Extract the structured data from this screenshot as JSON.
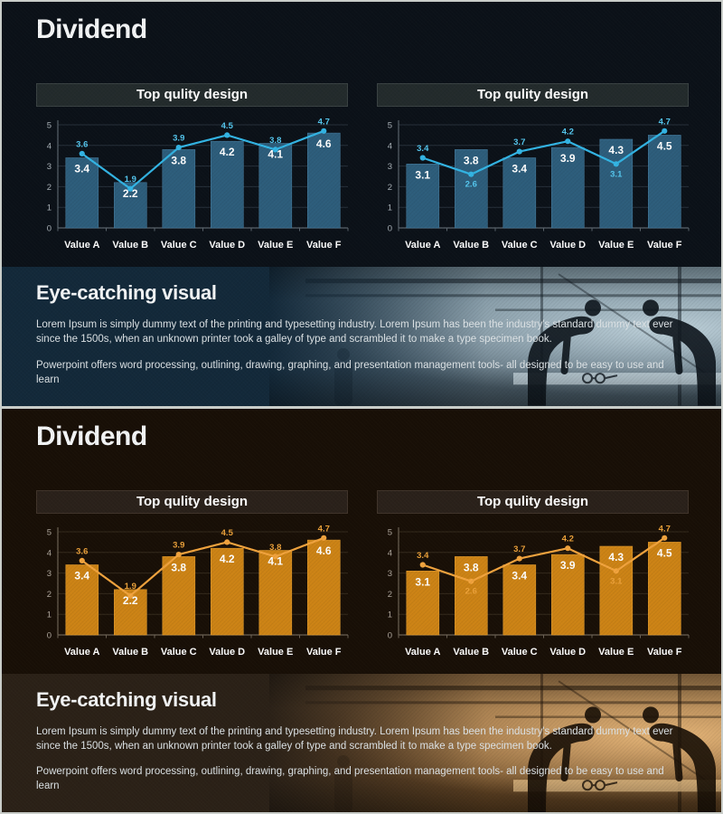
{
  "page": {
    "kind": "presentation-template-preview",
    "separator_color": "#c9cdc9"
  },
  "chart_data": [
    {
      "type": "bar",
      "title": "Top qulity design",
      "categories": [
        "Value A",
        "Value B",
        "Value C",
        "Value D",
        "Value E",
        "Value F"
      ],
      "series": [
        {
          "name": "bars",
          "type": "bar",
          "values": [
            3.4,
            2.2,
            3.8,
            4.2,
            4.1,
            4.6
          ]
        },
        {
          "name": "line",
          "type": "line",
          "values": [
            3.6,
            1.9,
            3.9,
            4.5,
            3.8,
            4.7
          ],
          "label_side": [
            "above",
            "above",
            "above",
            "above",
            "above",
            "above"
          ]
        }
      ],
      "ylim": [
        0,
        5
      ],
      "yticks": [
        0,
        1,
        2,
        3,
        4,
        5
      ],
      "grid": true,
      "legend": false,
      "data_labels": true
    },
    {
      "type": "bar",
      "title": "Top qulity design",
      "categories": [
        "Value A",
        "Value B",
        "Value C",
        "Value D",
        "Value E",
        "Value F"
      ],
      "series": [
        {
          "name": "bars",
          "type": "bar",
          "values": [
            3.1,
            3.8,
            3.4,
            3.9,
            4.3,
            4.5
          ]
        },
        {
          "name": "line",
          "type": "line",
          "values": [
            3.4,
            2.6,
            3.7,
            4.2,
            3.1,
            4.7
          ],
          "label_side": [
            "above",
            "below",
            "above",
            "above",
            "below",
            "above"
          ]
        }
      ],
      "ylim": [
        0,
        5
      ],
      "yticks": [
        0,
        1,
        2,
        3,
        4,
        5
      ],
      "grid": true,
      "legend": false,
      "data_labels": true
    }
  ],
  "slides": [
    {
      "title": "Dividend",
      "footer": {
        "heading": "Eye-catching visual",
        "para1": "Lorem Ipsum is simply dummy text of the printing and typesetting industry. Lorem Ipsum has been the industry's standard dummy text ever since the 1500s, when an unknown printer took a galley of type and scrambled it to make a type specimen book.",
        "para2": "Powerpoint offers word processing, outlining, drawing, graphing, and presentation management tools- all designed to be easy to use and learn"
      },
      "theme": {
        "bg": "#0b1118",
        "hdr_bg": "#232b2c",
        "hdr_border": "#3a4243",
        "footer_bg": "#13293a",
        "ph_top": "#7f96a2",
        "ph_mid": "#5d7280",
        "ph_low": "#43545f",
        "ph_light": "#bdd0d9",
        "ph_dark": "#10181f",
        "ph_table": "#c2d2da"
      },
      "chart_colors": {
        "bar": "#2d5d7b",
        "bar_stroke": "#44799b",
        "line": "#33b5e5",
        "line_label": "#55c8f0",
        "value_label": "#ffffff",
        "axis_text": "#aab2b8",
        "grid": "#27303a",
        "axis": "#5a646c",
        "category": "#ffffff"
      }
    },
    {
      "title": "Dividend",
      "footer": {
        "heading": "Eye-catching visual",
        "para1": "Lorem Ipsum is simply dummy text of the printing and typesetting industry. Lorem Ipsum has been the industry's standard dummy text ever since the 1500s, when an unknown printer took a galley of type and scrambled it to make a type specimen book.",
        "para2": "Powerpoint offers word processing, outlining, drawing, graphing, and presentation management tools- all designed to be easy to use and learn"
      },
      "theme": {
        "bg": "#180f06",
        "hdr_bg": "#2a211a",
        "hdr_border": "#40342a",
        "footer_bg": "#2b2117",
        "ph_top": "#9a7448",
        "ph_mid": "#7a5630",
        "ph_low": "#573c1e",
        "ph_light": "#e5b578",
        "ph_dark": "#1c1208",
        "ph_table": "#e2bb82"
      },
      "chart_colors": {
        "bar": "#cc8315",
        "bar_stroke": "#e09a2e",
        "line": "#f2a43e",
        "line_label": "#eda23a",
        "value_label": "#ffffff",
        "axis_text": "#b0a89e",
        "grid": "#342a1c",
        "axis": "#6c6254",
        "category": "#ffffff"
      }
    }
  ]
}
